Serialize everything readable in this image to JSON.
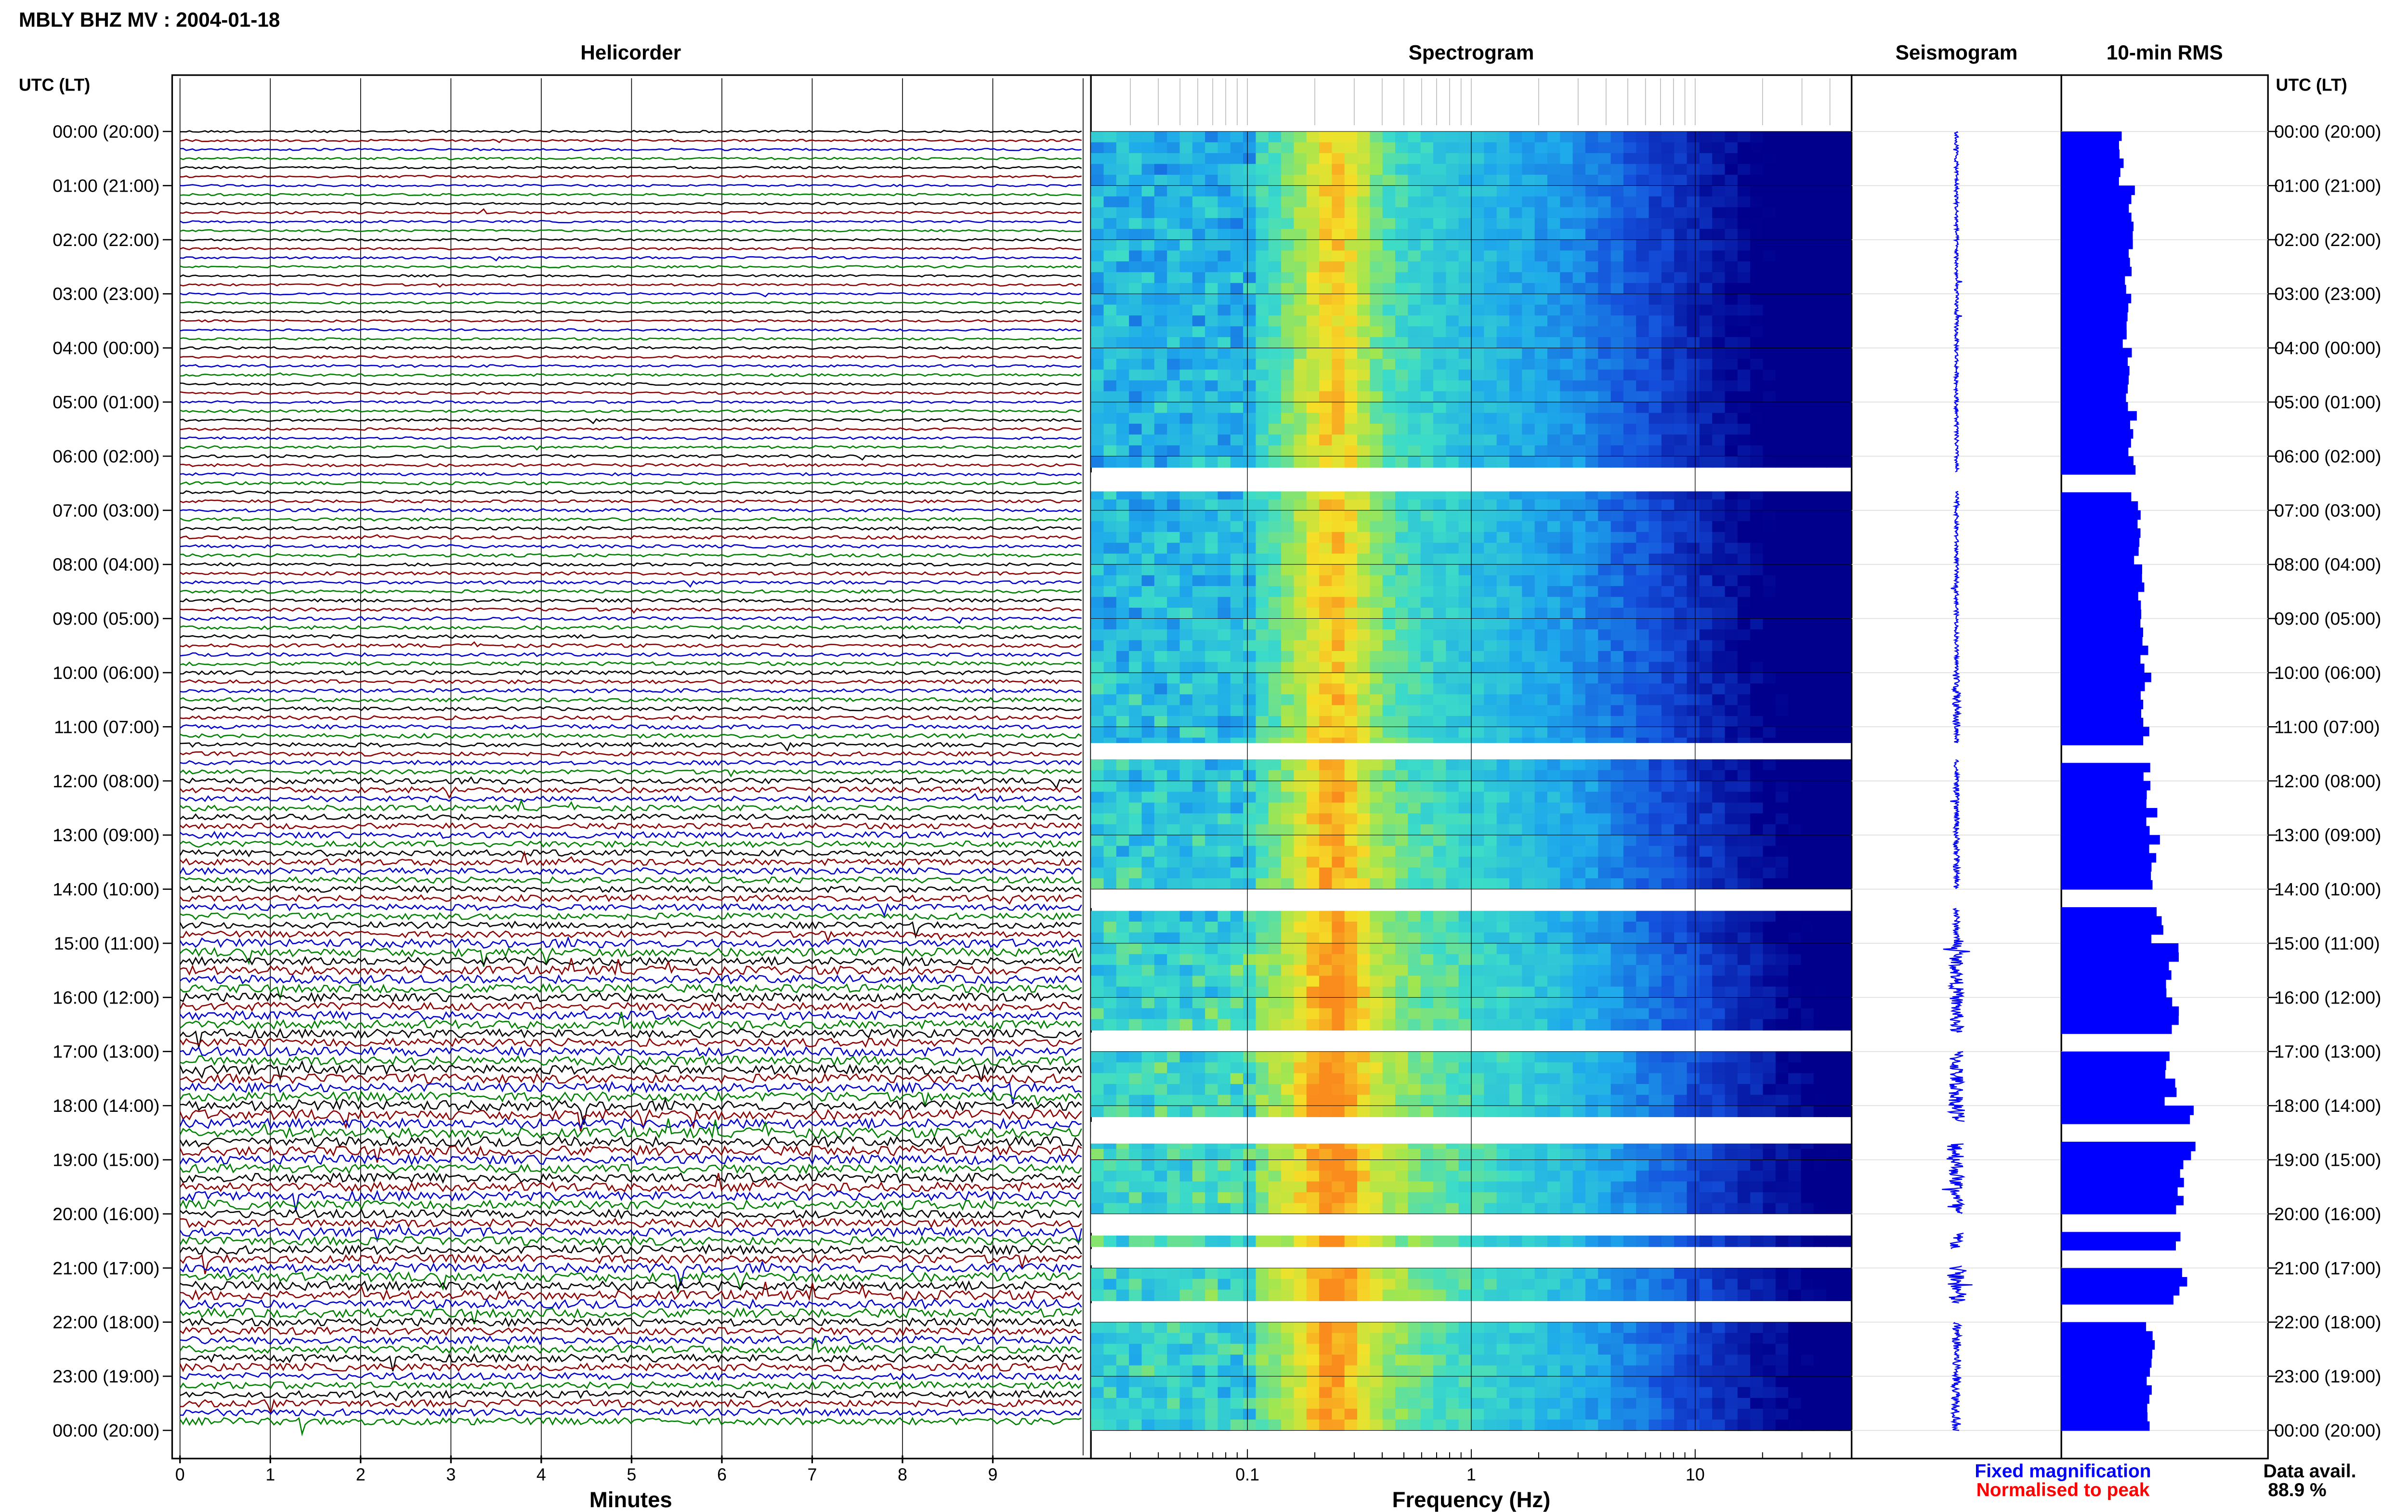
{
  "title": "MBLY BHZ MV : 2004-01-18",
  "panel_titles": {
    "helicorder": "Helicorder",
    "spectrogram": "Spectrogram",
    "seismogram": "Seismogram",
    "rms": "10-min RMS"
  },
  "axis_header_left": "UTC (LT)",
  "axis_header_right": "UTC (LT)",
  "x_labels": {
    "helicorder": "Minutes",
    "spectrogram": "Frequency (Hz)"
  },
  "legend": {
    "fixed": "Fixed magnification",
    "normalised": "Normalised to peak",
    "fixed_color": "#0000ff",
    "normalised_color": "#ff0000"
  },
  "data_avail_label": "Data avail.",
  "data_avail_value": "88.9 %",
  "colors": {
    "trace_cycle": [
      "#000000",
      "#8b0000",
      "#0000cc",
      "#008000"
    ],
    "rms_bar": "#0000ff",
    "seismogram": "#0000ff"
  },
  "chart_data": [
    {
      "type": "line",
      "name": "helicorder",
      "xlabel": "Minutes",
      "x_ticks": [
        "0",
        "1",
        "2",
        "3",
        "4",
        "5",
        "6",
        "7",
        "8",
        "9"
      ],
      "xlim": [
        0,
        10
      ],
      "rows_per_hour": 6,
      "hour_labels": [
        "00:00 (20:00)",
        "01:00 (21:00)",
        "02:00 (22:00)",
        "03:00 (23:00)",
        "04:00 (00:00)",
        "05:00 (01:00)",
        "06:00 (02:00)",
        "07:00 (03:00)",
        "08:00 (04:00)",
        "09:00 (05:00)",
        "10:00 (06:00)",
        "11:00 (07:00)",
        "12:00 (08:00)",
        "13:00 (09:00)",
        "14:00 (10:00)",
        "15:00 (11:00)",
        "16:00 (12:00)",
        "17:00 (13:00)",
        "18:00 (14:00)",
        "19:00 (15:00)",
        "20:00 (16:00)",
        "21:00 (17:00)",
        "22:00 (18:00)",
        "23:00 (19:00)",
        "00:00 (20:00)"
      ],
      "amplitude_per_hour": [
        0.3,
        0.3,
        0.3,
        0.3,
        0.35,
        0.35,
        0.4,
        0.45,
        0.45,
        0.5,
        0.55,
        0.6,
        0.8,
        0.9,
        0.9,
        1.2,
        1.2,
        1.3,
        1.4,
        1.3,
        1.2,
        1.3,
        1.1,
        1.0
      ]
    },
    {
      "type": "heatmap",
      "name": "spectrogram",
      "xlabel": "Frequency (Hz)",
      "x_scale": "log",
      "xlim": [
        0.02,
        50
      ],
      "x_ticks": [
        "0.1",
        "1",
        "10"
      ],
      "gaps_utc_hours": [
        [
          6.3,
          6.65
        ],
        [
          11.3,
          11.6
        ],
        [
          14.0,
          14.35
        ],
        [
          16.65,
          17.0
        ],
        [
          18.3,
          18.7
        ],
        [
          20.0,
          20.35
        ],
        [
          20.65,
          20.95
        ],
        [
          21.65,
          22.0
        ]
      ]
    },
    {
      "type": "line",
      "name": "seismogram",
      "xlabel": "",
      "amplitude_per_hour": [
        0.25,
        0.25,
        0.25,
        0.25,
        0.25,
        0.25,
        0.25,
        0.25,
        0.25,
        0.25,
        0.5,
        0.3,
        0.35,
        0.4,
        0.4,
        0.9,
        0.9,
        1.0,
        1.3,
        1.0,
        1.0,
        1.3,
        0.6,
        0.6
      ]
    },
    {
      "type": "bar",
      "name": "10-min RMS",
      "xlabel": "",
      "rms_per_hour": [
        0.33,
        0.38,
        0.37,
        0.36,
        0.38,
        0.39,
        0.4,
        0.42,
        0.43,
        0.45,
        0.47,
        0.46,
        0.5,
        0.52,
        0.53,
        0.62,
        0.65,
        0.6,
        0.7,
        0.66,
        0.62,
        0.66,
        0.5,
        0.5
      ]
    }
  ]
}
